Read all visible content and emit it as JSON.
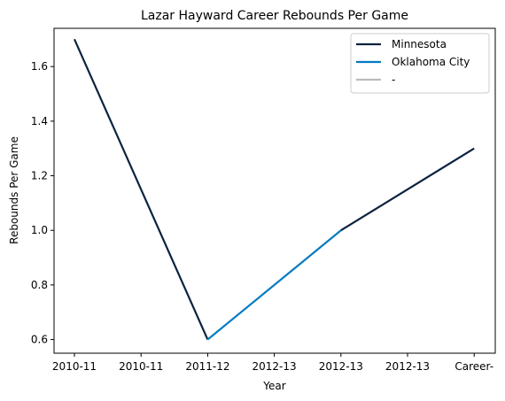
{
  "chart_data": {
    "type": "line",
    "title": "Lazar Hayward Career Rebounds Per Game",
    "xlabel": "Year",
    "ylabel": "Rebounds Per Game",
    "categories": [
      "2010-11",
      "2010-11",
      "2011-12",
      "2012-13",
      "2012-13",
      "2012-13",
      "Career-"
    ],
    "ylim": [
      0.55,
      1.74
    ],
    "yticks": [
      0.6,
      0.8,
      1.0,
      1.2,
      1.4,
      1.6
    ],
    "ytick_labels": [
      "0.6",
      "0.8",
      "1.0",
      "1.2",
      "1.4",
      "1.6"
    ],
    "grid": false,
    "legend_position": "top-right",
    "series": [
      {
        "name": "Minnesota",
        "color": "#0c2340",
        "points": [
          [
            0,
            1.7
          ],
          [
            2,
            0.6
          ]
        ]
      },
      {
        "name": "Oklahoma City",
        "color": "#007ac1",
        "points": [
          [
            2,
            0.6
          ],
          [
            4,
            1.0
          ]
        ]
      },
      {
        "name": "Minnesota",
        "color": "#0c2340",
        "points": [
          [
            4,
            1.0
          ],
          [
            6,
            1.3
          ]
        ],
        "in_legend": false
      },
      {
        "name": "-",
        "color": "#bbbbbb",
        "points": []
      }
    ]
  }
}
